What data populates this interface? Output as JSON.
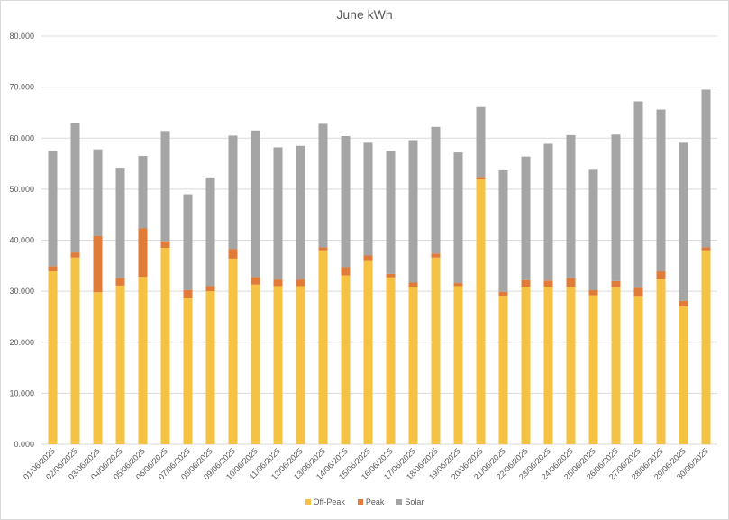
{
  "chart_data": {
    "type": "bar",
    "stacked": true,
    "title": "June kWh",
    "xlabel": "",
    "ylabel": "",
    "ylim": [
      0,
      80
    ],
    "yticks": [
      "0.000",
      "10.000",
      "20.000",
      "30.000",
      "40.000",
      "50.000",
      "60.000",
      "70.000",
      "80.000"
    ],
    "grid": true,
    "legend_position": "bottom",
    "categories": [
      "01/06/2025",
      "02/06/2025",
      "03/06/2025",
      "04/06/2025",
      "05/06/2025",
      "06/06/2025",
      "07/06/2025",
      "08/06/2025",
      "09/06/2025",
      "10/06/2025",
      "11/06/2025",
      "12/06/2025",
      "13/06/2025",
      "14/06/2025",
      "15/06/2025",
      "16/06/2025",
      "17/06/2025",
      "18/06/2025",
      "19/06/2025",
      "20/06/2025",
      "21/06/2025",
      "22/06/2025",
      "23/06/2025",
      "24/06/2025",
      "25/06/2025",
      "26/06/2025",
      "27/06/2025",
      "28/06/2025",
      "29/06/2025",
      "30/06/2025"
    ],
    "series": [
      {
        "name": "Off-Peak",
        "color": "#f6c244",
        "values": [
          33.9,
          36.6,
          29.8,
          31.1,
          32.8,
          38.5,
          28.6,
          30.0,
          36.4,
          31.3,
          31.0,
          31.0,
          38.0,
          33.1,
          35.9,
          32.7,
          30.9,
          36.6,
          31.0,
          51.9,
          29.1,
          30.9,
          30.9,
          30.9,
          29.2,
          30.8,
          28.9,
          32.3,
          27.0,
          38.0
        ]
      },
      {
        "name": "Peak",
        "color": "#e07b39",
        "values": [
          1.0,
          1.0,
          11.0,
          1.5,
          9.5,
          1.3,
          1.6,
          1.0,
          1.9,
          1.5,
          1.3,
          1.3,
          0.6,
          1.6,
          1.1,
          0.7,
          0.8,
          0.8,
          0.6,
          0.5,
          0.8,
          1.3,
          1.2,
          1.7,
          1.0,
          1.2,
          1.8,
          1.6,
          1.1,
          0.6
        ]
      },
      {
        "name": "Solar",
        "color": "#a5a5a5",
        "values": [
          22.6,
          25.4,
          17.0,
          21.6,
          14.2,
          21.6,
          18.8,
          21.3,
          22.2,
          28.7,
          25.9,
          26.2,
          24.2,
          25.7,
          22.1,
          24.1,
          27.9,
          24.8,
          25.6,
          13.7,
          23.8,
          24.2,
          26.8,
          28.0,
          23.6,
          28.7,
          36.5,
          31.7,
          31.0,
          30.9
        ]
      }
    ]
  }
}
